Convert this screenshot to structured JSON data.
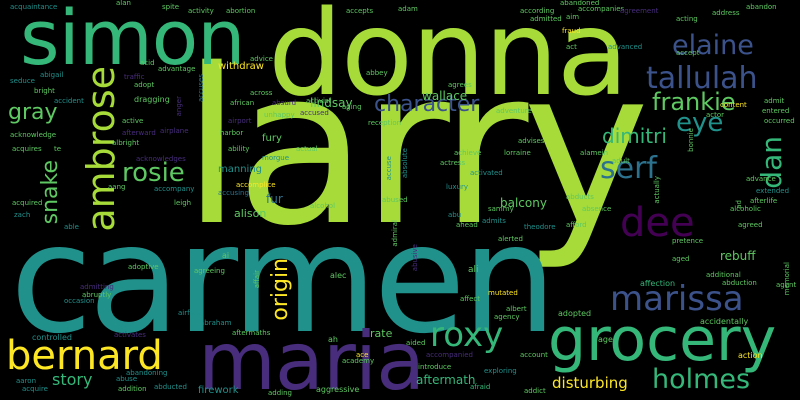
{
  "palette": {
    "yellow": "#fde725",
    "lime": "#a6db3a",
    "green": "#5ec962",
    "mint": "#35b779",
    "teal": "#21918c",
    "blue": "#2c728e",
    "slate": "#3b528b",
    "indigo": "#472d7b",
    "purple": "#440154",
    "background": "#000000"
  },
  "words": {
    "larry": "larry",
    "carmen": "carmen",
    "donna": "donna",
    "simon": "simon",
    "maria": "maria",
    "grocery": "grocery",
    "bernard": "bernard",
    "ambrose": "ambrose",
    "marissa": "marissa",
    "tallulah": "tallulah",
    "roxy": "roxy",
    "elaine": "elaine",
    "dee": "dee",
    "holmes": "holmes",
    "rosie": "rosie",
    "serf": "serf",
    "frankie": "frankie",
    "character": "character",
    "dimitri": "dimitri",
    "eye": "eye",
    "dan": "dan",
    "gray": "gray",
    "snake": "snake",
    "origin": "origin",
    "story": "story",
    "disturbing": "disturbing",
    "aftermath": "aftermath",
    "rebuff": "rebuff",
    "balcony": "balcony",
    "wallace": "wallace",
    "lindsay": "lindsay",
    "withdraw": "withdraw",
    "alison": "alison",
    "fury": "fury",
    "manning": "manning",
    "fur": "fur",
    "rate": "rate",
    "firework": "firework",
    "aggressive": "aggressive",
    "ali": "ali",
    "affection": "affection",
    "accidentally": "accidentally",
    "adopted": "adopted",
    "age": "age",
    "action": "action",
    "abandoning": "abandoning",
    "abducted": "abducted",
    "academy": "academy",
    "aided": "aided",
    "accompanied": "accompanied",
    "introduce": "introduce",
    "account": "account",
    "afraid": "afraid",
    "addict": "addict",
    "exploring": "exploring",
    "agency": "agency",
    "albert": "albert",
    "mutated": "mutated",
    "affect": "affect",
    "alec": "alec",
    "airfield": "airfield",
    "aftermath_small": "aftermaths",
    "abraham": "abraham",
    "activates": "activates",
    "controlled": "controlled",
    "occasion": "occasion",
    "admitting": "admitting",
    "abruptly": "abruptly",
    "adoptive": "adoptive",
    "agreeing": "agreeing",
    "accompany": "accompany",
    "accomplice": "accomplice",
    "accusing": "accusing",
    "acknowledges": "acknowledges",
    "leigh": "leigh",
    "alcohol": "alcohol",
    "abused": "abused",
    "actual": "actual",
    "morgue": "morgue",
    "ability": "ability",
    "airport": "airport",
    "harbor": "harbor",
    "airplane": "airplane",
    "albright": "albright",
    "afterward": "afterward",
    "active": "active",
    "dragging": "dragging",
    "accident": "accident",
    "acknowledge": "acknowledge",
    "acquires": "acquires",
    "acquired": "acquired",
    "bright": "bright",
    "abigail": "abigail",
    "seduce": "seduce",
    "acquaintance": "acquaintance",
    "accused": "accused",
    "unhappy": "unhappy",
    "african": "african",
    "across": "across",
    "absurd": "absurd",
    "activist": "activist",
    "aging": "aging",
    "reception": "reception",
    "adventure": "adventure",
    "advises": "advises",
    "achieve": "achieve",
    "lorraine": "lorraine",
    "activated": "activated",
    "actress": "actress",
    "luxury": "luxury",
    "abu": "abu",
    "ahead": "ahead",
    "admits": "admits",
    "theodore": "theodore",
    "sammy": "sammy",
    "alerted": "alerted",
    "afford": "afford",
    "absence": "absence",
    "abducts": "abducts",
    "alamein": "alamein",
    "adult": "adult",
    "advance": "advance",
    "alcoholic": "alcoholic",
    "afterlife": "afterlife",
    "agreed": "agreed",
    "extended": "extended",
    "pretence": "pretence",
    "aged": "aged",
    "additional": "additional",
    "abduction": "abduction",
    "memorial": "memorial",
    "agent": "agent",
    "admit": "admit",
    "entered": "entered",
    "occurred": "occurred",
    "actor": "actor",
    "content": "content",
    "address": "address",
    "abandon": "abandon",
    "acting": "acting",
    "accept": "accept",
    "advanced": "advanced",
    "act": "act",
    "fraud": "fraud",
    "aim": "aim",
    "accompanies": "accompanies",
    "abandoned": "abandoned",
    "agreement": "agreement",
    "according": "according",
    "admitted": "admitted",
    "adam": "adam",
    "accepts": "accepts",
    "spite": "spite",
    "activity": "activity",
    "abortion": "abortion",
    "alan": "alan",
    "advice": "advice",
    "advantage": "advantage",
    "adopt": "adopt",
    "traffic": "traffic",
    "abbey": "abbey",
    "agrees": "agrees",
    "acid": "acid",
    "ah": "ah",
    "ace": "ace",
    "abuse": "abuse",
    "addition": "addition",
    "acquire": "acquire",
    "aaron": "aaron",
    "adding": "adding",
    "zach": "zach",
    "able": "able",
    "aang": "aang",
    "te": "te",
    "ai": "ai",
    "affair": "affair",
    "admiral": "admiral",
    "abusive": "abusive",
    "bonnie": "bonnie",
    "actually": "actually",
    "ad": "ad",
    "accuse": "accuse",
    "anger": "anger",
    "absolute": "absolute",
    "accuses": "accuses"
  }
}
